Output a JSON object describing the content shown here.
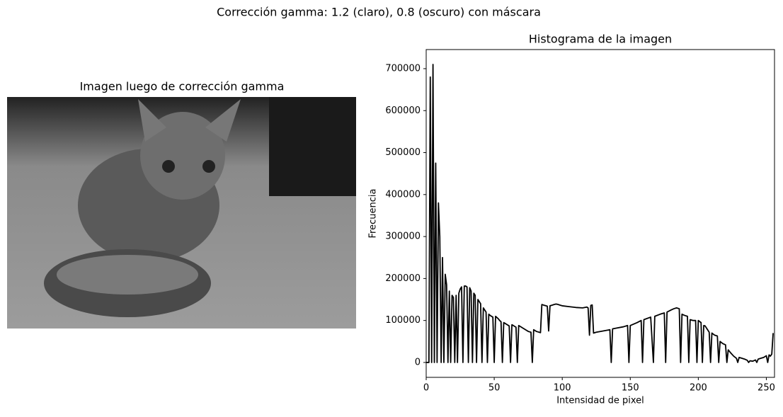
{
  "title": "Corrección gamma: 1.2 (claro), 0.8 (oscuro) con máscara",
  "chart_data": [
    {
      "type": "image",
      "title": "Imagen luego de corrección gamma"
    },
    {
      "type": "line",
      "title": "Histograma de la imagen",
      "xlabel": "Intensidad de pixel",
      "ylabel": "Frecuencia",
      "color": "#000000",
      "xlim": [
        0,
        256
      ],
      "ylim": [
        -35500,
        745500
      ],
      "xticks": [
        0,
        50,
        100,
        150,
        200,
        250
      ],
      "yticks": [
        0,
        100000,
        200000,
        300000,
        400000,
        500000,
        600000,
        700000
      ],
      "x": [
        0,
        1,
        2,
        3,
        4,
        5,
        6,
        7,
        8,
        9,
        10,
        11,
        12,
        13,
        14,
        15,
        16,
        17,
        18,
        19,
        20,
        21,
        22,
        23,
        24,
        25,
        26,
        27,
        28,
        29,
        30,
        31,
        32,
        33,
        34,
        35,
        36,
        37,
        38,
        39,
        40,
        41,
        42,
        43,
        44,
        45,
        46,
        47,
        48,
        49,
        50,
        51,
        52,
        53,
        54,
        55,
        56,
        57,
        58,
        59,
        60,
        61,
        62,
        63,
        64,
        65,
        66,
        67,
        68,
        69,
        70,
        71,
        72,
        73,
        74,
        75,
        76,
        77,
        78,
        79,
        80,
        81,
        82,
        83,
        84,
        85,
        86,
        87,
        88,
        89,
        90,
        91,
        92,
        93,
        94,
        95,
        96,
        97,
        98,
        99,
        100,
        105,
        110,
        115,
        118,
        119,
        120,
        121,
        122,
        123,
        125,
        130,
        135,
        136,
        137,
        140,
        145,
        148,
        149,
        150,
        155,
        158,
        159,
        160,
        165,
        167,
        168,
        172,
        175,
        176,
        177,
        180,
        182,
        184,
        186,
        187,
        188,
        190,
        192,
        193,
        194,
        196,
        198,
        199,
        200,
        202,
        203,
        204,
        205,
        208,
        209,
        210,
        212,
        214,
        215,
        216,
        218,
        220,
        221,
        222,
        224,
        226,
        228,
        229,
        230,
        232,
        234,
        236,
        237,
        238,
        240,
        242,
        243,
        244,
        246,
        248,
        250,
        251,
        252,
        253,
        254,
        255
      ],
      "values": [
        0,
        0,
        0,
        680000,
        0,
        710000,
        0,
        475000,
        0,
        380000,
        300000,
        0,
        250000,
        0,
        210000,
        185000,
        0,
        170000,
        0,
        160000,
        155000,
        0,
        160000,
        0,
        165000,
        175000,
        180000,
        0,
        182000,
        182000,
        180000,
        0,
        178000,
        170000,
        0,
        165000,
        160000,
        0,
        150000,
        145000,
        140000,
        0,
        130000,
        125000,
        120000,
        0,
        115000,
        112000,
        110000,
        108000,
        0,
        110000,
        107000,
        104000,
        100000,
        97000,
        0,
        95000,
        93000,
        91000,
        89000,
        87000,
        0,
        90000,
        88000,
        86000,
        84000,
        0,
        88000,
        86000,
        84000,
        82000,
        80000,
        78000,
        76000,
        74000,
        73000,
        72000,
        0,
        78000,
        76000,
        74000,
        73000,
        72000,
        71000,
        138000,
        137000,
        136000,
        135000,
        134000,
        75000,
        135000,
        136000,
        137000,
        138000,
        139000,
        139000,
        138000,
        137000,
        136000,
        135000,
        133000,
        131000,
        130000,
        132000,
        130000,
        65000,
        136000,
        137000,
        70000,
        72000,
        75000,
        78000,
        0,
        80000,
        82000,
        85000,
        88000,
        0,
        88000,
        95000,
        100000,
        0,
        102000,
        108000,
        0,
        110000,
        115000,
        118000,
        0,
        120000,
        125000,
        128000,
        130000,
        128000,
        0,
        115000,
        112000,
        110000,
        0,
        102000,
        100000,
        100000,
        0,
        100000,
        95000,
        0,
        88000,
        87000,
        72000,
        0,
        70000,
        65000,
        63000,
        0,
        50000,
        45000,
        42000,
        0,
        30000,
        22000,
        15000,
        10000,
        0,
        12000,
        10000,
        8000,
        5000,
        0,
        4000,
        3000,
        6000,
        0,
        8000,
        10000,
        12000,
        16000,
        0,
        18000,
        15000,
        20000,
        70000
      ]
    }
  ]
}
